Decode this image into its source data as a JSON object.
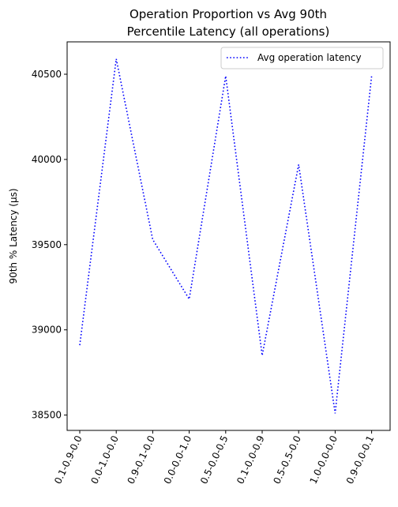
{
  "chart_data": {
    "type": "line",
    "title_lines": [
      "Operation Proportion vs Avg 90th",
      "Percentile Latency (all operations)"
    ],
    "xlabel": "",
    "ylabel": "90th % Latency (µs)",
    "categories": [
      "0.1-0.9-0.0",
      "0.0-1.0-0.0",
      "0.9-0.1-0.0",
      "0.0-0.0-1.0",
      "0.5-0.0-0.5",
      "0.1-0.0-0.9",
      "0.5-0.5-0.0",
      "1.0-0.0-0.0",
      "0.9-0.0-0.1"
    ],
    "series": [
      {
        "name": "Avg operation latency",
        "values": [
          38910,
          40590,
          39530,
          39180,
          40490,
          38850,
          39970,
          38510,
          40490
        ],
        "color": "#0000ff",
        "linestyle": "dotted"
      }
    ],
    "yticks": [
      38500,
      39000,
      39500,
      40000,
      40500
    ],
    "ylim": [
      38410,
      40690
    ],
    "grid": false,
    "legend_position": "upper right"
  }
}
